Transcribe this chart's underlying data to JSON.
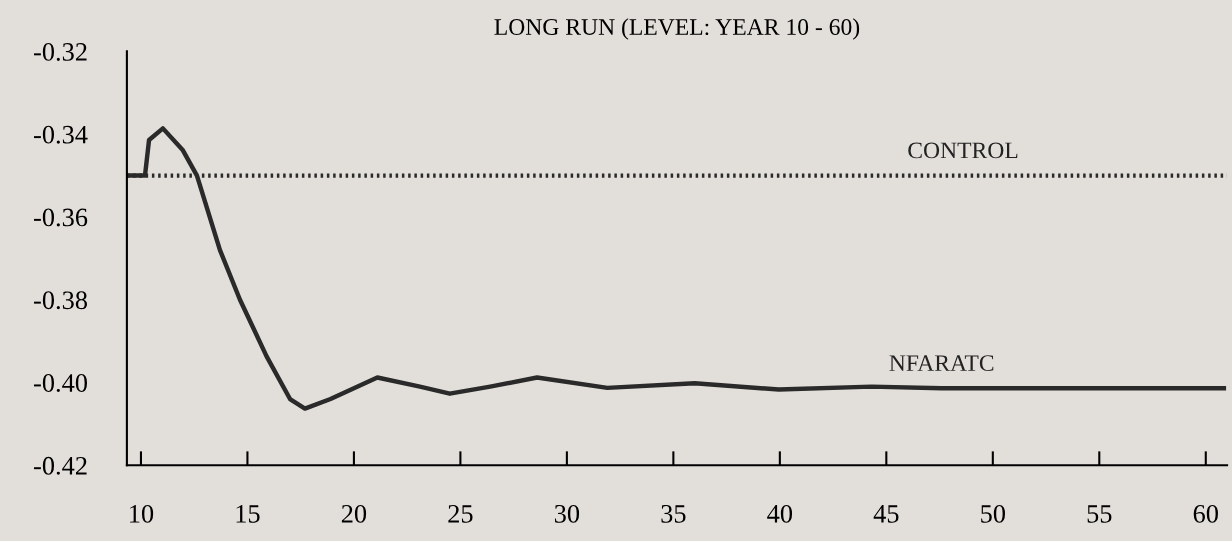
{
  "chart_data": {
    "type": "line",
    "title": "LONG RUN (LEVEL: YEAR 10 - 60)",
    "x": [
      9.34,
      10.19,
      10.38,
      11.03,
      11.97,
      12.63,
      13.71,
      14.65,
      15.9,
      17.0,
      17.7,
      18.9,
      21.1,
      23.1,
      24.5,
      26.4,
      28.6,
      31.9,
      36.0,
      39.95,
      44.3,
      47.6,
      55.3,
      60.85
    ],
    "series": [
      {
        "name": "NFARATC",
        "color": "#2a2a2a",
        "values": [
          -0.35,
          -0.35,
          -0.3414,
          -0.3386,
          -0.3439,
          -0.35,
          -0.368,
          -0.38,
          -0.3937,
          -0.404,
          -0.4063,
          -0.404,
          -0.3988,
          -0.401,
          -0.4027,
          -0.401,
          -0.3988,
          -0.4013,
          -0.4002,
          -0.4017,
          -0.401,
          -0.4014,
          -0.4014,
          -0.4014
        ]
      }
    ],
    "ref_lines": [
      {
        "axis": "y",
        "value": -0.35,
        "label": "CONTROL",
        "line_style": "dotted",
        "color": "#2a2a2a"
      }
    ],
    "xlim": [
      9.34,
      61.0
    ],
    "xticks": [
      10,
      15,
      20,
      25,
      30,
      35,
      40,
      45,
      50,
      55,
      60
    ],
    "ylim": [
      -0.42,
      -0.32
    ],
    "yticks": [
      -0.32,
      -0.34,
      -0.36,
      -0.38,
      {
        "value": -0.4,
        "label": "-0.40"
      },
      -0.42
    ],
    "grid": false,
    "legend": false,
    "marker": "none",
    "line_style": "solid"
  }
}
